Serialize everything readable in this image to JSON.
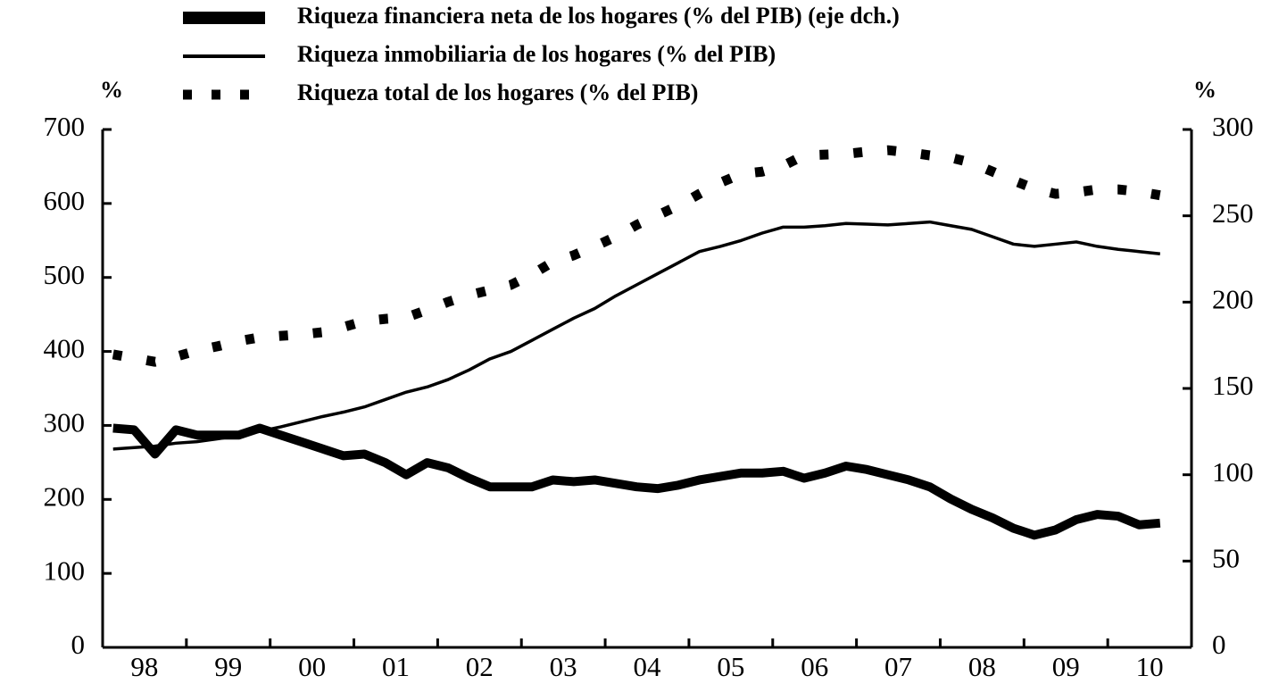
{
  "chart_data": {
    "type": "line",
    "y_unit": "%",
    "y2_unit": "%",
    "categories": [
      "98",
      null,
      null,
      null,
      "99",
      null,
      null,
      null,
      "00",
      null,
      null,
      null,
      "01",
      null,
      null,
      null,
      "02",
      null,
      null,
      null,
      "03",
      null,
      null,
      null,
      "04",
      null,
      null,
      null,
      "05",
      null,
      null,
      null,
      "06",
      null,
      null,
      null,
      "07",
      null,
      null,
      null,
      "08",
      null,
      null,
      null,
      "09",
      null,
      null,
      null,
      "10",
      null,
      null,
      null
    ],
    "series": [
      {
        "name": "Riqueza financiera neta de los hogares (% del PIB) (eje dch.)",
        "color": "#000000",
        "style": "thick",
        "axis": "y2",
        "values": [
          127,
          126,
          112,
          126,
          123,
          123,
          123,
          127,
          123,
          119,
          115,
          111,
          112,
          107,
          100,
          107,
          104,
          98,
          93,
          93,
          93,
          97,
          96,
          97,
          95,
          93,
          92,
          94,
          97,
          99,
          101,
          101,
          102,
          98,
          101,
          105,
          103,
          100,
          97,
          93,
          86,
          80,
          75,
          69,
          65,
          68,
          74,
          77,
          76,
          71,
          72,
          null
        ]
      },
      {
        "name": "Riqueza inmobiliaria de los hogares (% del PIB)",
        "color": "#000000",
        "style": "thin",
        "values": [
          268,
          270,
          272,
          276,
          278,
          282,
          286,
          292,
          298,
          305,
          312,
          318,
          325,
          335,
          345,
          352,
          362,
          375,
          390,
          400,
          415,
          430,
          445,
          458,
          475,
          490,
          505,
          520,
          535,
          542,
          550,
          560,
          568,
          568,
          570,
          573,
          572,
          571,
          573,
          575,
          570,
          565,
          555,
          545,
          542,
          545,
          548,
          542,
          538,
          535,
          532,
          null
        ]
      },
      {
        "name": "Riqueza total de los hogares (% del PIB)",
        "color": "#000000",
        "style": "dotted",
        "values": [
          396,
          391,
          386,
          393,
          401,
          407,
          414,
          419,
          421,
          423,
          426,
          433,
          441,
          444,
          446,
          456,
          467,
          476,
          483,
          490,
          504,
          521,
          530,
          542,
          555,
          571,
          584,
          597,
          613,
          628,
          640,
          643,
          651,
          665,
          666,
          667,
          670,
          672,
          669,
          665,
          662,
          655,
          643,
          631,
          620,
          613,
          615,
          619,
          619,
          616,
          611,
          null
        ]
      }
    ],
    "ylim": [
      0,
      700
    ],
    "yticks": [
      0,
      100,
      200,
      300,
      400,
      500,
      600,
      700
    ],
    "y2lim": [
      0,
      300
    ],
    "y2ticks": [
      0,
      50,
      100,
      150,
      200,
      250,
      300
    ]
  }
}
